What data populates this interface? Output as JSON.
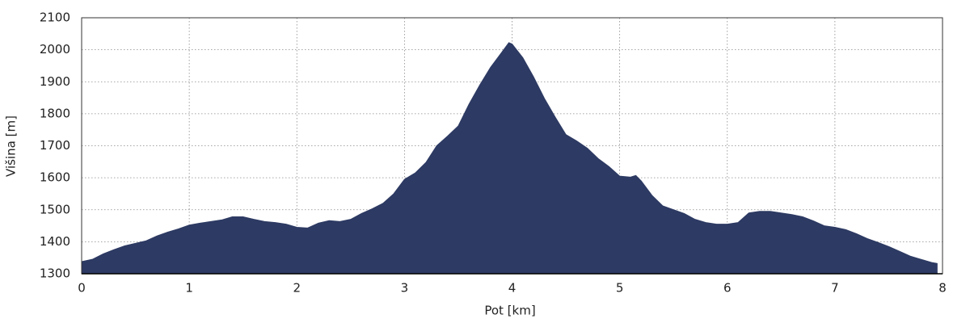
{
  "chart_data": {
    "type": "area",
    "xlabel": "Pot [km]",
    "ylabel": "Višina [m]",
    "color": "#2d3a63",
    "grid": true,
    "xlim": [
      0,
      8
    ],
    "xticks": [
      0,
      1,
      2,
      3,
      4,
      5,
      6,
      7,
      8
    ],
    "ylim": [
      1300,
      2100
    ],
    "yticks": [
      1300,
      1400,
      1500,
      1600,
      1700,
      1800,
      1900,
      2000,
      2100
    ],
    "x": [
      0,
      0.1,
      0.2,
      0.3,
      0.4,
      0.5,
      0.6,
      0.7,
      0.8,
      0.9,
      1.0,
      1.1,
      1.2,
      1.3,
      1.4,
      1.5,
      1.6,
      1.7,
      1.8,
      1.9,
      2.0,
      2.1,
      2.2,
      2.3,
      2.4,
      2.5,
      2.6,
      2.7,
      2.8,
      2.9,
      3.0,
      3.1,
      3.2,
      3.3,
      3.4,
      3.5,
      3.6,
      3.7,
      3.8,
      3.9,
      3.97,
      4.0,
      4.1,
      4.2,
      4.3,
      4.4,
      4.5,
      4.6,
      4.7,
      4.8,
      4.9,
      5.0,
      5.1,
      5.15,
      5.2,
      5.3,
      5.4,
      5.5,
      5.6,
      5.7,
      5.8,
      5.9,
      6.0,
      6.1,
      6.2,
      6.3,
      6.4,
      6.5,
      6.6,
      6.7,
      6.8,
      6.9,
      7.0,
      7.1,
      7.2,
      7.3,
      7.4,
      7.5,
      7.6,
      7.7,
      7.8,
      7.9,
      7.95
    ],
    "values": [
      1338,
      1345,
      1362,
      1375,
      1387,
      1395,
      1403,
      1418,
      1430,
      1440,
      1452,
      1458,
      1463,
      1468,
      1478,
      1478,
      1470,
      1463,
      1460,
      1455,
      1445,
      1443,
      1458,
      1466,
      1463,
      1470,
      1488,
      1503,
      1520,
      1550,
      1595,
      1615,
      1648,
      1700,
      1730,
      1762,
      1830,
      1890,
      1945,
      1990,
      2022,
      2018,
      1975,
      1915,
      1848,
      1790,
      1735,
      1715,
      1692,
      1660,
      1635,
      1605,
      1602,
      1607,
      1590,
      1545,
      1512,
      1500,
      1488,
      1470,
      1460,
      1455,
      1455,
      1460,
      1490,
      1495,
      1495,
      1490,
      1485,
      1478,
      1465,
      1450,
      1445,
      1438,
      1425,
      1410,
      1398,
      1385,
      1370,
      1355,
      1345,
      1335,
      1332
    ]
  }
}
